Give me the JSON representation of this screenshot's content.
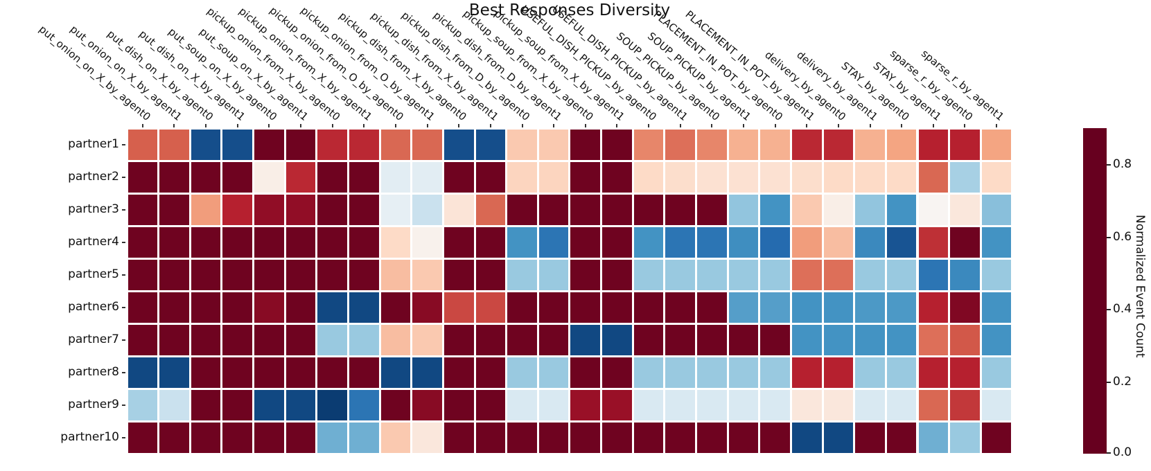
{
  "title": "Best Responses Diversity",
  "colorbar": {
    "label": "Normalized Event Count",
    "tick_labels": [
      "0.0",
      "0.2",
      "0.4",
      "0.6",
      "0.8"
    ]
  },
  "colors": {
    "background": "#ffffff",
    "rdbu_anchors": [
      "#67001f",
      "#b2182b",
      "#d6604d",
      "#f4a582",
      "#fddbc7",
      "#f7f7f7",
      "#d1e5f0",
      "#92c5de",
      "#4393c3",
      "#2166ac",
      "#053061"
    ]
  },
  "chart_data": {
    "type": "heatmap",
    "title": "Best Responses Diversity",
    "colormap": "RdBu",
    "vmin": 0.0,
    "vmax": 0.9,
    "colorbar_label": "Normalized Event Count",
    "colorbar_ticks": [
      0.0,
      0.2,
      0.4,
      0.6,
      0.8
    ],
    "legend_position": "right",
    "grid": false,
    "rows": [
      "partner1",
      "partner2",
      "partner3",
      "partner4",
      "partner5",
      "partner6",
      "partner7",
      "partner8",
      "partner9",
      "partner10"
    ],
    "columns": [
      "put_onion_on_X_by_agent0",
      "put_onion_on_X_by_agent1",
      "put_dish_on_X_by_agent0",
      "put_dish_on_X_by_agent1",
      "put_soup_on_X_by_agent0",
      "put_soup_on_X_by_agent1",
      "pickup_onion_from_X_by_agent0",
      "pickup_onion_from_X_by_agent1",
      "pickup_onion_from_O_by_agent0",
      "pickup_onion_from_O_by_agent1",
      "pickup_dish_from_X_by_agent0",
      "pickup_dish_from_X_by_agent1",
      "pickup_dish_from_D_by_agent0",
      "pickup_dish_from_D_by_agent1",
      "pickup_soup_from_X_by_agent0",
      "pickup_soup_from_X_by_agent1",
      "USEFUL_DISH_PICKUP_by_agent0",
      "USEFUL_DISH_PICKUP_by_agent1",
      "SOUP_PICKUP_by_agent0",
      "SOUP_PICKUP_by_agent1",
      "PLACEMENT_IN_POT_by_agent0",
      "PLACEMENT_IN_POT_by_agent1",
      "delivery_by_agent0",
      "delivery_by_agent1",
      "STAY_by_agent0",
      "STAY_by_agent1",
      "sparse_r_by_agent0",
      "sparse_r_by_agent1"
    ],
    "values": [
      [
        0.18,
        0.18,
        0.85,
        0.85,
        0.01,
        0.01,
        0.11,
        0.11,
        0.19,
        0.19,
        0.85,
        0.85,
        0.33,
        0.33,
        0.01,
        0.01,
        0.23,
        0.2,
        0.23,
        0.29,
        0.29,
        0.11,
        0.11,
        0.29,
        0.27,
        0.1,
        0.1,
        0.27
      ],
      [
        0.01,
        0.01,
        0.01,
        0.01,
        0.42,
        0.11,
        0.01,
        0.01,
        0.5,
        0.5,
        0.01,
        0.01,
        0.35,
        0.35,
        0.01,
        0.01,
        0.36,
        0.37,
        0.38,
        0.38,
        0.38,
        0.37,
        0.36,
        0.36,
        0.36,
        0.19,
        0.6,
        0.36
      ],
      [
        0.01,
        0.01,
        0.26,
        0.1,
        0.05,
        0.05,
        0.01,
        0.01,
        0.49,
        0.55,
        0.39,
        0.19,
        0.01,
        0.01,
        0.01,
        0.01,
        0.01,
        0.01,
        0.01,
        0.63,
        0.72,
        0.33,
        0.42,
        0.63,
        0.72,
        0.44,
        0.4,
        0.64
      ],
      [
        0.01,
        0.01,
        0.01,
        0.01,
        0.01,
        0.01,
        0.01,
        0.01,
        0.36,
        0.43,
        0.01,
        0.01,
        0.72,
        0.78,
        0.01,
        0.01,
        0.72,
        0.78,
        0.78,
        0.73,
        0.8,
        0.26,
        0.31,
        0.74,
        0.84,
        0.12,
        0.01,
        0.72
      ],
      [
        0.01,
        0.01,
        0.01,
        0.01,
        0.01,
        0.01,
        0.01,
        0.01,
        0.31,
        0.33,
        0.01,
        0.01,
        0.62,
        0.62,
        0.01,
        0.01,
        0.62,
        0.62,
        0.62,
        0.62,
        0.62,
        0.2,
        0.2,
        0.62,
        0.62,
        0.78,
        0.74,
        0.62
      ],
      [
        0.01,
        0.01,
        0.01,
        0.01,
        0.04,
        0.01,
        0.86,
        0.86,
        0.01,
        0.04,
        0.15,
        0.15,
        0.01,
        0.01,
        0.01,
        0.01,
        0.01,
        0.01,
        0.01,
        0.7,
        0.7,
        0.72,
        0.72,
        0.71,
        0.71,
        0.1,
        0.03,
        0.72
      ],
      [
        0.01,
        0.01,
        0.01,
        0.01,
        0.01,
        0.01,
        0.62,
        0.62,
        0.31,
        0.33,
        0.01,
        0.01,
        0.01,
        0.01,
        0.86,
        0.86,
        0.01,
        0.01,
        0.01,
        0.01,
        0.01,
        0.72,
        0.72,
        0.72,
        0.72,
        0.2,
        0.17,
        0.72
      ],
      [
        0.86,
        0.86,
        0.01,
        0.01,
        0.01,
        0.01,
        0.01,
        0.01,
        0.86,
        0.86,
        0.01,
        0.01,
        0.62,
        0.62,
        0.01,
        0.01,
        0.62,
        0.62,
        0.62,
        0.62,
        0.62,
        0.1,
        0.1,
        0.62,
        0.62,
        0.1,
        0.1,
        0.62
      ],
      [
        0.6,
        0.55,
        0.01,
        0.01,
        0.86,
        0.86,
        0.88,
        0.78,
        0.01,
        0.04,
        0.01,
        0.01,
        0.52,
        0.52,
        0.06,
        0.06,
        0.52,
        0.52,
        0.52,
        0.52,
        0.52,
        0.4,
        0.4,
        0.52,
        0.52,
        0.19,
        0.13,
        0.52
      ],
      [
        0.01,
        0.01,
        0.01,
        0.01,
        0.01,
        0.01,
        0.67,
        0.67,
        0.33,
        0.4,
        0.01,
        0.01,
        0.01,
        0.01,
        0.01,
        0.01,
        0.01,
        0.01,
        0.01,
        0.01,
        0.01,
        0.86,
        0.86,
        0.01,
        0.01,
        0.67,
        0.62,
        0.01
      ]
    ]
  }
}
